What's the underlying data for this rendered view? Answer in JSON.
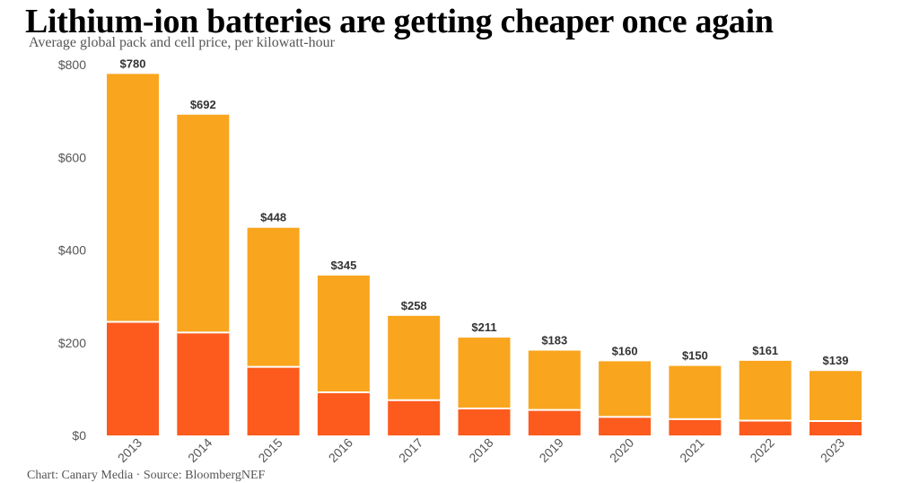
{
  "title": "Lithium-ion batteries are getting cheaper once again",
  "subtitle": "Average global pack and cell price, per kilowatt-hour",
  "source": "Chart: Canary Media · Source: BloombergNEF",
  "colors": {
    "pack": "#f9a51e",
    "cell": "#fc5b1d"
  },
  "chart_data": {
    "type": "bar",
    "stacked": true,
    "categories": [
      "2013",
      "2014",
      "2015",
      "2016",
      "2017",
      "2018",
      "2019",
      "2020",
      "2021",
      "2022",
      "2023"
    ],
    "totals": [
      780,
      692,
      448,
      345,
      258,
      211,
      183,
      160,
      150,
      161,
      139
    ],
    "total_labels": [
      "$780",
      "$692",
      "$448",
      "$345",
      "$258",
      "$211",
      "$183",
      "$160",
      "$150",
      "$161",
      "$139"
    ],
    "series": [
      {
        "values": [
          245,
          222,
          148,
          93,
          76,
          58,
          55,
          40,
          35,
          32,
          31
        ]
      },
      {
        "values": [
          535,
          470,
          300,
          252,
          182,
          153,
          128,
          120,
          115,
          129,
          108
        ]
      }
    ],
    "yticks": [
      "$0",
      "$200",
      "$400",
      "$600",
      "$800"
    ],
    "ylim": [
      0,
      800
    ],
    "grid": false,
    "xlabel": "",
    "ylabel": ""
  }
}
